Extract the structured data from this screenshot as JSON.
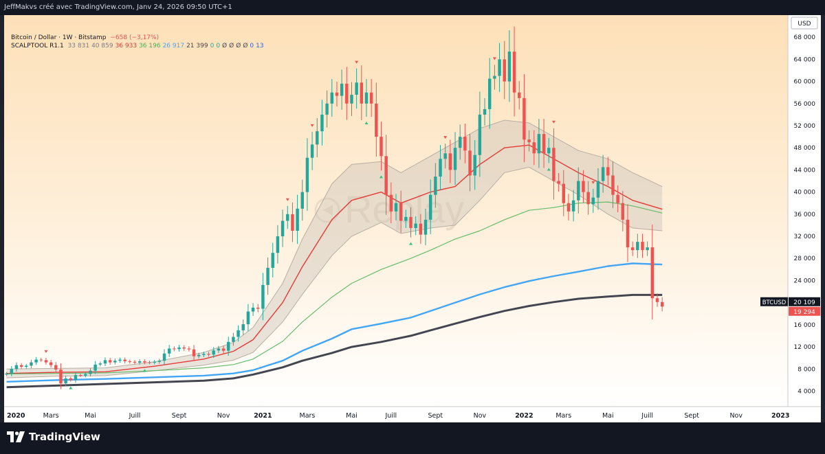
{
  "header": {
    "attribution": "JeffMakvs créé avec TradingView.com, Janv 24, 2026 09:50 UTC+1"
  },
  "legend": {
    "symbol_line": "Bitcoin / Dollar · 1W · Bitstamp",
    "change": "−658 (−3,17%)",
    "indicator_name": "SCALPTOOL R1.1",
    "indicator_values": [
      {
        "text": "33 831",
        "color": "#787b86"
      },
      {
        "text": "40 859",
        "color": "#787b86"
      },
      {
        "text": "36 933",
        "color": "#e53935"
      },
      {
        "text": "36 196",
        "color": "#4caf50"
      },
      {
        "text": "26 917",
        "color": "#42a5f5"
      },
      {
        "text": "21 399",
        "color": "#434651"
      },
      {
        "text": "0",
        "color": "#26a69a"
      },
      {
        "text": "0",
        "color": "#26a69a"
      },
      {
        "text": "Ø",
        "color": "#434651"
      },
      {
        "text": "Ø",
        "color": "#434651"
      },
      {
        "text": "Ø",
        "color": "#434651"
      },
      {
        "text": "Ø",
        "color": "#434651"
      },
      {
        "text": "0",
        "color": "#2962ff"
      },
      {
        "text": "13",
        "color": "#2962ff"
      }
    ]
  },
  "watermark": "Replay",
  "branding": "TradingView",
  "colors": {
    "up": "#26a69a",
    "down": "#ef5350",
    "ema_red": "#e53935",
    "ma_green": "#66bb6a",
    "ma_blue": "#42a5f5",
    "ma_black": "#434651",
    "band": "#cfc6ba"
  },
  "chart_data": {
    "type": "candlestick",
    "title": "Bitcoin / Dollar · 1W · Bitstamp",
    "currency": "USD",
    "ylim": [
      1200,
      72000
    ],
    "y_ticks": [
      4000,
      8000,
      12000,
      16000,
      20000,
      24000,
      28000,
      32000,
      36000,
      40000,
      44000,
      48000,
      52000,
      56000,
      60000,
      64000,
      68000
    ],
    "y_tick_labels": [
      "4 000",
      "8 000",
      "12 000",
      "16 000",
      "20 000",
      "24 000",
      "28 000",
      "32 000",
      "36 000",
      "40 000",
      "44 000",
      "48 000",
      "52 000",
      "56 000",
      "60 000",
      "64 000",
      "68 000"
    ],
    "x_axis_labels": [
      {
        "week": 0,
        "label": "2020",
        "bold": true
      },
      {
        "week": 9,
        "label": "Mars"
      },
      {
        "week": 17,
        "label": "Mai"
      },
      {
        "week": 26,
        "label": "Juill"
      },
      {
        "week": 35,
        "label": "Sept"
      },
      {
        "week": 44,
        "label": "Nov"
      },
      {
        "week": 52,
        "label": "2021",
        "bold": true
      },
      {
        "week": 61,
        "label": "Mars"
      },
      {
        "week": 70,
        "label": "Mai"
      },
      {
        "week": 78,
        "label": "Juill"
      },
      {
        "week": 87,
        "label": "Sept"
      },
      {
        "week": 96,
        "label": "Nov"
      },
      {
        "week": 105,
        "label": "2022",
        "bold": true
      },
      {
        "week": 113,
        "label": "Mars"
      },
      {
        "week": 122,
        "label": "Mai"
      },
      {
        "week": 130,
        "label": "Juill"
      },
      {
        "week": 139,
        "label": "Sept"
      },
      {
        "week": 148,
        "label": "Nov"
      },
      {
        "week": 157,
        "label": "2023",
        "bold": true
      }
    ],
    "x_range_weeks": [
      -0.5,
      158.5
    ],
    "price_labels": [
      {
        "name": "symbol",
        "text": "BTCUSD",
        "value_text": "20 109",
        "value": 20109,
        "bg": "#131722"
      },
      {
        "name": "last",
        "text": "",
        "value_text": "19 294",
        "value": 19294,
        "bg": "#ef5350"
      }
    ],
    "candles_close": [
      7200,
      8000,
      8700,
      8400,
      8600,
      9200,
      9700,
      9600,
      9200,
      8700,
      7900,
      5400,
      6300,
      6000,
      6900,
      6800,
      7100,
      7700,
      8800,
      9000,
      9600,
      9200,
      9500,
      9700,
      9400,
      9300,
      9150,
      9400,
      9200,
      9150,
      9300,
      9500,
      10800,
      11700,
      11600,
      11900,
      11700,
      11550,
      10300,
      10550,
      10750,
      10600,
      11350,
      11700,
      11300,
      12900,
      13800,
      15000,
      16100,
      18400,
      19100,
      18900,
      23200,
      26300,
      29000,
      32000,
      34800,
      36000,
      33000,
      37000,
      40000,
      46200,
      48600,
      51000,
      54000,
      56000,
      58000,
      57400,
      59600,
      56000,
      57600,
      59800,
      56000,
      58000,
      56000,
      50000,
      46500,
      39500,
      36500,
      38000,
      34800,
      35500,
      33500,
      34300,
      32300,
      35000,
      39500,
      42800,
      46000,
      47000,
      44000,
      48000,
      50000,
      47500,
      43000,
      46700,
      54000,
      55000,
      60500,
      61000,
      64000,
      60000,
      65400,
      58000,
      57000,
      49500,
      49000,
      47000,
      50500,
      47000,
      48000,
      42000,
      41500,
      38000,
      36500,
      38500,
      42000,
      40000,
      37800,
      39000,
      42000,
      44500,
      43000,
      39500,
      38000,
      35000,
      30000,
      29500,
      31000,
      29500,
      30000,
      20800,
      20109,
      19294
    ],
    "open_first": 7000,
    "indicators": [
      {
        "name": "EMA (red)",
        "color": "#e53935",
        "points": [
          [
            0,
            7200
          ],
          [
            10,
            7400
          ],
          [
            20,
            7500
          ],
          [
            30,
            8500
          ],
          [
            40,
            9800
          ],
          [
            46,
            11200
          ],
          [
            50,
            13300
          ],
          [
            56,
            20000
          ],
          [
            60,
            26500
          ],
          [
            66,
            35000
          ],
          [
            70,
            38500
          ],
          [
            76,
            40000
          ],
          [
            80,
            38000
          ],
          [
            86,
            40000
          ],
          [
            91,
            41000
          ],
          [
            96,
            45000
          ],
          [
            101,
            48000
          ],
          [
            106,
            48500
          ],
          [
            111,
            46000
          ],
          [
            116,
            43500
          ],
          [
            122,
            41000
          ],
          [
            127,
            38500
          ],
          [
            133,
            36900
          ]
        ]
      },
      {
        "name": "MA (green)",
        "color": "#66bb6a",
        "points": [
          [
            0,
            7100
          ],
          [
            10,
            7200
          ],
          [
            20,
            7300
          ],
          [
            30,
            7700
          ],
          [
            40,
            8200
          ],
          [
            46,
            8800
          ],
          [
            50,
            9800
          ],
          [
            56,
            13000
          ],
          [
            60,
            16500
          ],
          [
            66,
            21000
          ],
          [
            70,
            23500
          ],
          [
            76,
            26000
          ],
          [
            82,
            28000
          ],
          [
            86,
            29500
          ],
          [
            91,
            31500
          ],
          [
            96,
            33000
          ],
          [
            101,
            35000
          ],
          [
            106,
            36700
          ],
          [
            111,
            37200
          ],
          [
            116,
            38000
          ],
          [
            122,
            38200
          ],
          [
            127,
            37500
          ],
          [
            133,
            36200
          ]
        ]
      },
      {
        "name": "MA (blue)",
        "color": "#42a5f5",
        "points": [
          [
            0,
            5700
          ],
          [
            10,
            6000
          ],
          [
            20,
            6200
          ],
          [
            30,
            6500
          ],
          [
            40,
            6800
          ],
          [
            46,
            7200
          ],
          [
            50,
            7800
          ],
          [
            56,
            9500
          ],
          [
            60,
            11300
          ],
          [
            66,
            13500
          ],
          [
            70,
            15200
          ],
          [
            76,
            16200
          ],
          [
            82,
            17300
          ],
          [
            86,
            18500
          ],
          [
            91,
            20000
          ],
          [
            96,
            21500
          ],
          [
            101,
            22800
          ],
          [
            106,
            23900
          ],
          [
            111,
            24800
          ],
          [
            116,
            25600
          ],
          [
            122,
            26600
          ],
          [
            127,
            27100
          ],
          [
            133,
            26900
          ]
        ]
      },
      {
        "name": "MA (black)",
        "color": "#434651",
        "points": [
          [
            0,
            4700
          ],
          [
            10,
            5000
          ],
          [
            20,
            5300
          ],
          [
            30,
            5600
          ],
          [
            40,
            5900
          ],
          [
            46,
            6300
          ],
          [
            50,
            7000
          ],
          [
            56,
            8300
          ],
          [
            60,
            9500
          ],
          [
            66,
            10900
          ],
          [
            70,
            12000
          ],
          [
            76,
            12900
          ],
          [
            82,
            14000
          ],
          [
            86,
            15000
          ],
          [
            91,
            16200
          ],
          [
            96,
            17400
          ],
          [
            101,
            18500
          ],
          [
            106,
            19400
          ],
          [
            111,
            20100
          ],
          [
            116,
            20700
          ],
          [
            122,
            21100
          ],
          [
            127,
            21400
          ],
          [
            133,
            21400
          ]
        ]
      }
    ],
    "band": {
      "name": "envelope around EMA",
      "upper": [
        [
          0,
          8000
        ],
        [
          10,
          8100
        ],
        [
          20,
          8200
        ],
        [
          30,
          9300
        ],
        [
          40,
          11000
        ],
        [
          46,
          12800
        ],
        [
          50,
          15500
        ],
        [
          56,
          23500
        ],
        [
          60,
          31500
        ],
        [
          66,
          41500
        ],
        [
          70,
          45000
        ],
        [
          76,
          45500
        ],
        [
          80,
          43500
        ],
        [
          86,
          46500
        ],
        [
          91,
          49000
        ],
        [
          96,
          51500
        ],
        [
          101,
          53000
        ],
        [
          106,
          52500
        ],
        [
          111,
          50000
        ],
        [
          116,
          47500
        ],
        [
          122,
          46000
        ],
        [
          127,
          43500
        ],
        [
          133,
          41000
        ]
      ],
      "lower": [
        [
          0,
          6400
        ],
        [
          10,
          6700
        ],
        [
          20,
          6800
        ],
        [
          30,
          7700
        ],
        [
          40,
          8700
        ],
        [
          46,
          9600
        ],
        [
          50,
          11000
        ],
        [
          56,
          16500
        ],
        [
          60,
          21500
        ],
        [
          66,
          28500
        ],
        [
          70,
          32000
        ],
        [
          76,
          34500
        ],
        [
          80,
          32500
        ],
        [
          86,
          33500
        ],
        [
          91,
          34000
        ],
        [
          96,
          38500
        ],
        [
          101,
          43500
        ],
        [
          106,
          44500
        ],
        [
          111,
          42000
        ],
        [
          116,
          39500
        ],
        [
          122,
          36000
        ],
        [
          127,
          33500
        ],
        [
          133,
          33000
        ]
      ]
    },
    "markers": [
      {
        "week": 8,
        "type": "sell"
      },
      {
        "week": 13,
        "type": "buy"
      },
      {
        "week": 28,
        "type": "buy"
      },
      {
        "week": 57,
        "type": "sell"
      },
      {
        "week": 62,
        "type": "sell"
      },
      {
        "week": 71,
        "type": "sell"
      },
      {
        "week": 76,
        "type": "buy"
      },
      {
        "week": 73,
        "type": "buy"
      },
      {
        "week": 82,
        "type": "buy"
      },
      {
        "week": 89,
        "type": "sell"
      },
      {
        "week": 99,
        "type": "sell"
      },
      {
        "week": 111,
        "type": "sell"
      },
      {
        "week": 110,
        "type": "buy"
      },
      {
        "week": 119,
        "type": "sell"
      }
    ]
  }
}
